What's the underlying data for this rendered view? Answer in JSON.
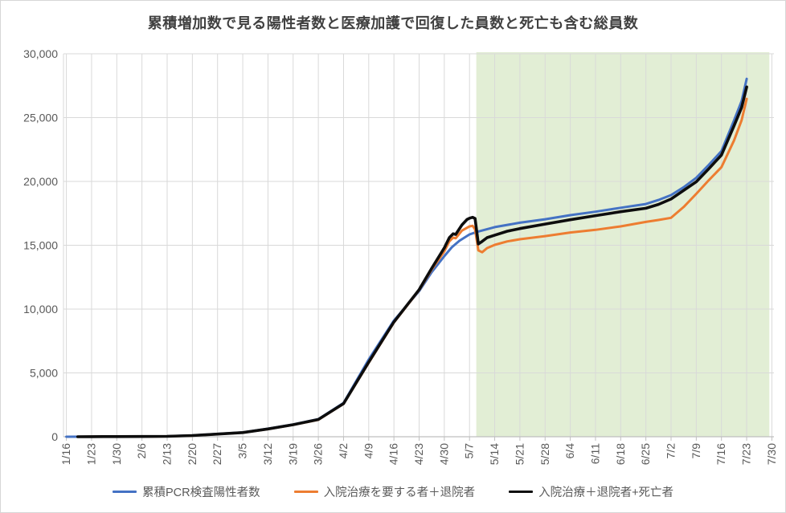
{
  "chart_data": {
    "type": "line",
    "title": "累積増加数で見る陽性者数と医療加護で回復した員数と死亡も含む総員数",
    "xlabel": "",
    "ylabel": "",
    "ylim": [
      0,
      30000
    ],
    "grid": true,
    "legend_position": "bottom",
    "x_tick_labels": [
      "1/16",
      "1/23",
      "1/30",
      "2/6",
      "2/13",
      "2/20",
      "2/27",
      "3/5",
      "3/12",
      "3/19",
      "3/26",
      "4/2",
      "4/9",
      "4/16",
      "4/23",
      "4/30",
      "5/7",
      "5/14",
      "5/21",
      "5/28",
      "6/4",
      "6/11",
      "6/18",
      "6/25",
      "7/2",
      "7/9",
      "7/16",
      "7/23",
      "7/30"
    ],
    "y_ticks": [
      {
        "label": "0",
        "value": 0
      },
      {
        "label": "5,000",
        "value": 5000
      },
      {
        "label": "10,000",
        "value": 10000
      },
      {
        "label": "15,000",
        "value": 15000
      },
      {
        "label": "20,000",
        "value": 20000
      },
      {
        "label": "25,000",
        "value": 25000
      },
      {
        "label": "30,000",
        "value": 30000
      }
    ],
    "highlight_band": {
      "start_week": 16.27,
      "end_week": 27.9,
      "color": "#e2eed5"
    },
    "series": [
      {
        "name": "累積PCR検査陽性者数",
        "color": "#4472C4",
        "stroke_width": 3,
        "points": [
          [
            0,
            2
          ],
          [
            1,
            6
          ],
          [
            2,
            12
          ],
          [
            3,
            22
          ],
          [
            4,
            40
          ],
          [
            5,
            100
          ],
          [
            6,
            220
          ],
          [
            7,
            340
          ],
          [
            8,
            630
          ],
          [
            9,
            960
          ],
          [
            10,
            1380
          ],
          [
            11,
            2650
          ],
          [
            12,
            6050
          ],
          [
            13,
            9100
          ],
          [
            14,
            11400
          ],
          [
            14.5,
            12900
          ],
          [
            15,
            14150
          ],
          [
            15.3,
            14850
          ],
          [
            15.6,
            15350
          ],
          [
            16,
            15850
          ],
          [
            16.3,
            16050
          ],
          [
            17,
            16420
          ],
          [
            18,
            16770
          ],
          [
            19,
            17040
          ],
          [
            20,
            17360
          ],
          [
            21,
            17630
          ],
          [
            22,
            17940
          ],
          [
            23,
            18230
          ],
          [
            23.5,
            18550
          ],
          [
            24,
            18930
          ],
          [
            24.5,
            19550
          ],
          [
            25,
            20290
          ],
          [
            25.5,
            21300
          ],
          [
            26,
            22380
          ],
          [
            26.5,
            24790
          ],
          [
            26.8,
            26300
          ],
          [
            27,
            28040
          ]
        ]
      },
      {
        "name": "入院治療を要する者＋退院者",
        "color": "#ED7D31",
        "stroke_width": 3,
        "points": [
          [
            0.45,
            2
          ],
          [
            1,
            4
          ],
          [
            2,
            8
          ],
          [
            3,
            18
          ],
          [
            4,
            32
          ],
          [
            5,
            90
          ],
          [
            6,
            205
          ],
          [
            7,
            320
          ],
          [
            8,
            600
          ],
          [
            9,
            930
          ],
          [
            10,
            1330
          ],
          [
            11,
            2580
          ],
          [
            12,
            5800
          ],
          [
            13,
            8950
          ],
          [
            14,
            11480
          ],
          [
            14.5,
            13100
          ],
          [
            15,
            14530
          ],
          [
            15.2,
            15300
          ],
          [
            15.35,
            15600
          ],
          [
            15.45,
            15550
          ],
          [
            15.7,
            16150
          ],
          [
            16,
            16480
          ],
          [
            16.12,
            16520
          ],
          [
            16.22,
            16250
          ],
          [
            16.35,
            14600
          ],
          [
            16.5,
            14450
          ],
          [
            16.7,
            14780
          ],
          [
            17,
            15030
          ],
          [
            17.5,
            15300
          ],
          [
            18,
            15470
          ],
          [
            19,
            15720
          ],
          [
            20,
            16000
          ],
          [
            21,
            16210
          ],
          [
            22,
            16480
          ],
          [
            23,
            16830
          ],
          [
            23.5,
            16980
          ],
          [
            24,
            17150
          ],
          [
            24.5,
            18000
          ],
          [
            25,
            19030
          ],
          [
            25.5,
            20100
          ],
          [
            26,
            21120
          ],
          [
            26.5,
            23220
          ],
          [
            26.8,
            24800
          ],
          [
            27,
            26470
          ]
        ]
      },
      {
        "name": "入院治療＋退院者+死亡者",
        "color": "#0d0d0d",
        "stroke_width": 3.6,
        "points": [
          [
            0.45,
            2
          ],
          [
            1,
            5
          ],
          [
            2,
            10
          ],
          [
            3,
            20
          ],
          [
            4,
            34
          ],
          [
            5,
            93
          ],
          [
            6,
            210
          ],
          [
            7,
            328
          ],
          [
            8,
            612
          ],
          [
            9,
            945
          ],
          [
            10,
            1350
          ],
          [
            11,
            2600
          ],
          [
            12,
            5840
          ],
          [
            13,
            8990
          ],
          [
            14,
            11520
          ],
          [
            14.5,
            13200
          ],
          [
            15,
            14800
          ],
          [
            15.2,
            15600
          ],
          [
            15.35,
            15900
          ],
          [
            15.45,
            15850
          ],
          [
            15.7,
            16600
          ],
          [
            15.9,
            17020
          ],
          [
            16,
            17120
          ],
          [
            16.12,
            17190
          ],
          [
            16.22,
            17100
          ],
          [
            16.35,
            15100
          ],
          [
            16.5,
            15300
          ],
          [
            16.7,
            15600
          ],
          [
            17,
            15790
          ],
          [
            17.5,
            16100
          ],
          [
            18,
            16310
          ],
          [
            19,
            16660
          ],
          [
            20,
            17000
          ],
          [
            21,
            17320
          ],
          [
            22,
            17630
          ],
          [
            23,
            17900
          ],
          [
            23.5,
            18200
          ],
          [
            24,
            18620
          ],
          [
            24.5,
            19300
          ],
          [
            25,
            19975
          ],
          [
            25.5,
            21000
          ],
          [
            26,
            22070
          ],
          [
            26.5,
            24370
          ],
          [
            26.8,
            25800
          ],
          [
            27,
            27400
          ]
        ]
      }
    ],
    "style": {
      "gridline_color": "#d9d9d9",
      "axis_color": "#bfbfbf",
      "tick_label_color": "#595959",
      "title_color": "#404040",
      "plot_background": "#ffffff"
    }
  }
}
